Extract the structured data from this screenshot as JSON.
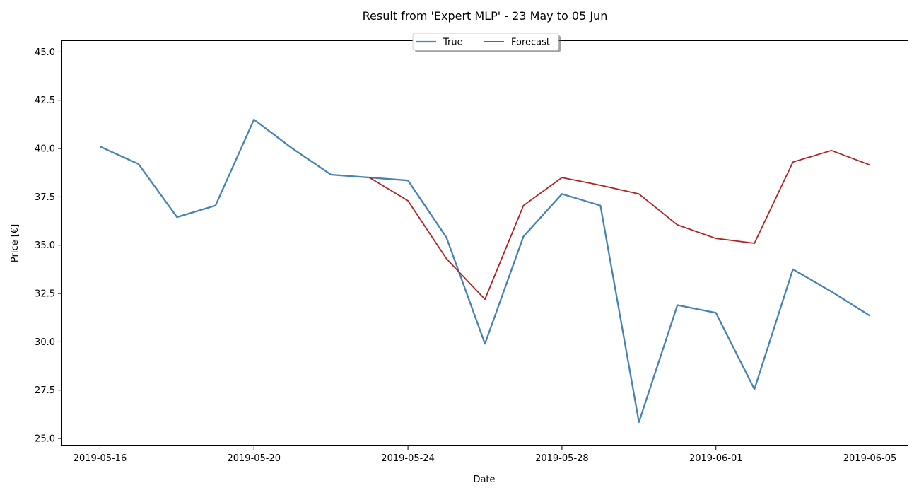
{
  "chart_data": {
    "type": "line",
    "title": "Result from 'Expert MLP' - 23 May to 05 Jun",
    "xlabel": "Date",
    "ylabel": "Price [€]",
    "ylim": [
      24.6,
      45.6
    ],
    "xlim": [
      "2019-05-15T00:00",
      "2019-06-06T00:00"
    ],
    "yticks": [
      25.0,
      27.5,
      30.0,
      32.5,
      35.0,
      37.5,
      40.0,
      42.5,
      45.0
    ],
    "ytick_labels": [
      "25.0",
      "27.5",
      "30.0",
      "32.5",
      "35.0",
      "37.5",
      "40.0",
      "42.5",
      "45.0"
    ],
    "xticks": [
      "2019-05-16",
      "2019-05-20",
      "2019-05-24",
      "2019-05-28",
      "2019-06-01",
      "2019-06-05"
    ],
    "grid": false,
    "legend_position": "top-center",
    "series": [
      {
        "name": "True",
        "color": "#4682b4",
        "x": [
          "2019-05-16",
          "2019-05-17",
          "2019-05-18",
          "2019-05-19",
          "2019-05-20",
          "2019-05-21",
          "2019-05-22",
          "2019-05-23",
          "2019-05-24",
          "2019-05-25",
          "2019-05-26",
          "2019-05-27",
          "2019-05-28",
          "2019-05-29",
          "2019-05-30",
          "2019-05-31",
          "2019-06-01",
          "2019-06-02",
          "2019-06-03",
          "2019-06-04",
          "2019-06-05"
        ],
        "values": [
          40.1,
          39.2,
          36.45,
          37.05,
          41.5,
          40.0,
          38.65,
          38.5,
          38.35,
          35.4,
          29.9,
          35.45,
          37.65,
          37.05,
          25.85,
          31.9,
          31.5,
          27.55,
          33.75,
          32.6,
          31.35
        ]
      },
      {
        "name": "Forecast",
        "color": "#b22222",
        "x": [
          "2019-05-23",
          "2019-05-24",
          "2019-05-25",
          "2019-05-26",
          "2019-05-27",
          "2019-05-28",
          "2019-05-29",
          "2019-05-30",
          "2019-05-31",
          "2019-06-01",
          "2019-06-02",
          "2019-06-03",
          "2019-06-04",
          "2019-06-05"
        ],
        "values": [
          38.5,
          37.3,
          34.3,
          32.2,
          37.05,
          38.5,
          38.1,
          37.65,
          36.05,
          35.35,
          35.1,
          39.3,
          39.9,
          39.15
        ]
      }
    ]
  }
}
